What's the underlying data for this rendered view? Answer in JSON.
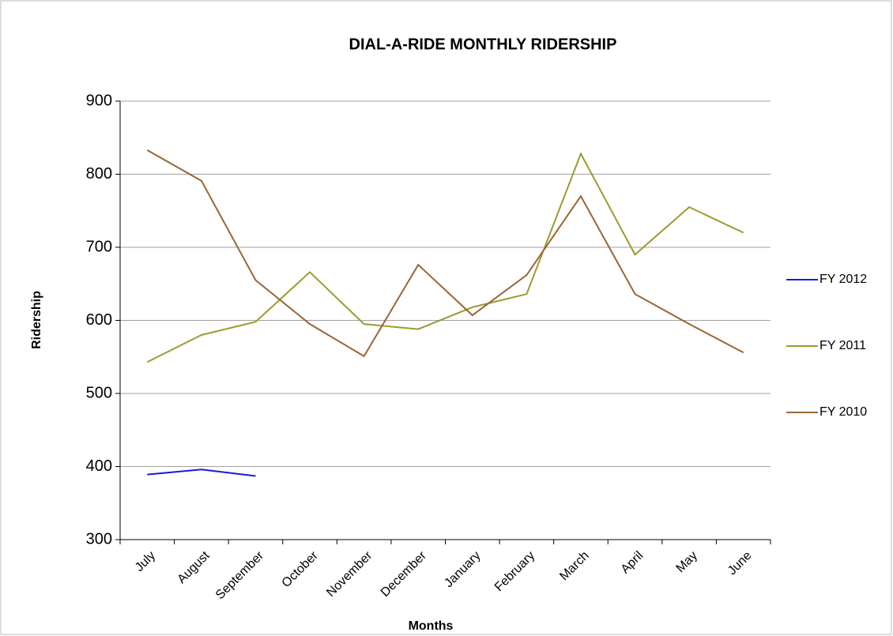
{
  "chart_data": {
    "type": "line",
    "title": "DIAL-A-RIDE MONTHLY RIDERSHIP",
    "x_label": "Months",
    "y_label": "Ridership",
    "categories": [
      "July",
      "August",
      "September",
      "October",
      "November",
      "December",
      "January",
      "February",
      "March",
      "April",
      "May",
      "June"
    ],
    "series": [
      {
        "name": "FY 2012",
        "color": "#1a1ad6",
        "values": [
          389,
          396,
          387,
          null,
          null,
          null,
          null,
          null,
          null,
          null,
          null,
          null
        ]
      },
      {
        "name": "FY 2011",
        "color": "#9b9b2f",
        "values": [
          543,
          580,
          598,
          666,
          595,
          588,
          618,
          636,
          828,
          690,
          755,
          720
        ]
      },
      {
        "name": "FY 2010",
        "color": "#9a6535",
        "values": [
          833,
          791,
          655,
          595,
          551,
          676,
          607,
          662,
          770,
          636,
          595,
          556
        ]
      }
    ],
    "ylim": [
      300,
      900
    ],
    "yticks": [
      300,
      400,
      500,
      600,
      700,
      800,
      900
    ],
    "grid": true,
    "legend": "right"
  }
}
